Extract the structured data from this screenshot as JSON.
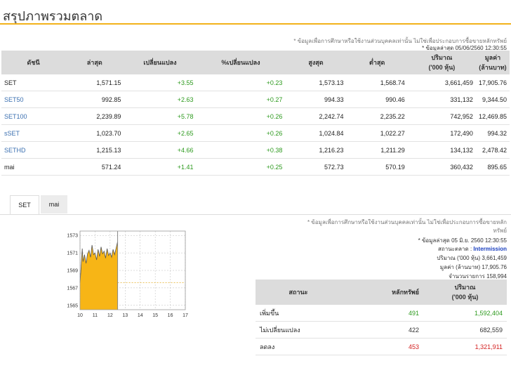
{
  "page": {
    "title": "สรุปภาพรวมตลาด"
  },
  "notes": {
    "disclaimer": "* ข้อมูลเพื่อการศึกษาหรือใช้งานส่วนบุคคลเท่านั้น ไม่ใช่เพื่อประกอบการซื้อขายหลักทรัพย์",
    "updated": "* ข้อมูลล่าสุด 05/06/2560 12:30:55"
  },
  "market_table": {
    "headers": [
      "ดัชนี",
      "ล่าสุด",
      "เปลี่ยนแปลง",
      "%เปลี่ยนแปลง",
      "สูงสุด",
      "ต่ำสุด",
      "ปริมาณ\n('000 หุ้น)",
      "มูลค่า\n(ล้านบาท)"
    ],
    "rows": [
      {
        "index": "SET",
        "last": "1,571.15",
        "change": "+3.55",
        "pct": "+0.23",
        "high": "1,573.13",
        "low": "1,568.74",
        "volume": "3,661,459",
        "value": "17,905.76"
      },
      {
        "index": "SET50",
        "last": "992.85",
        "change": "+2.63",
        "pct": "+0.27",
        "high": "994.33",
        "low": "990.46",
        "volume": "331,132",
        "value": "9,344.50"
      },
      {
        "index": "SET100",
        "last": "2,239.89",
        "change": "+5.78",
        "pct": "+0.26",
        "high": "2,242.74",
        "low": "2,235.22",
        "volume": "742,952",
        "value": "12,469.85"
      },
      {
        "index": "sSET",
        "last": "1,023.70",
        "change": "+2.65",
        "pct": "+0.26",
        "high": "1,024.84",
        "low": "1,022.27",
        "volume": "172,490",
        "value": "994.32"
      },
      {
        "index": "SETHD",
        "last": "1,215.13",
        "change": "+4.66",
        "pct": "+0.38",
        "high": "1,216.23",
        "low": "1,211.29",
        "volume": "134,132",
        "value": "2,478.42"
      },
      {
        "index": "mai",
        "last": "571.24",
        "change": "+1.41",
        "pct": "+0.25",
        "high": "572.73",
        "low": "570.19",
        "volume": "360,432",
        "value": "895.65"
      }
    ]
  },
  "tabs": {
    "set": "SET",
    "mai": "mai"
  },
  "set_panel": {
    "disclaimer_line1": "* ข้อมูลเพื่อการศึกษาหรือใช้งานส่วนบุคคลเท่านั้น ไม่ใช่เพื่อประกอบการซื้อขายหลัก",
    "disclaimer_line2": "ทรัพย์",
    "updated": "* ข้อมูลล่าสุด 05 มิ.ย. 2560 12:30:55",
    "status_label": "สถานะตลาด :",
    "status_value": "Intermission",
    "volume_line": "ปริมาณ ('000 หุ้น) 3,661,459",
    "value_line": "มูลค่า (ล้านบาท) 17,905.76",
    "deals_line": "จำนวนรายการ 158,994"
  },
  "breadth_table": {
    "headers": [
      "สถานะ",
      "หลักทรัพย์",
      "ปริมาณ\n('000 หุ้น)"
    ],
    "rows": [
      {
        "status": "เพิ่มขึ้น",
        "count": "491",
        "volume": "1,592,404",
        "color": "#2d9a1e"
      },
      {
        "status": "ไม่เปลี่ยนแปลง",
        "count": "422",
        "volume": "682,559",
        "color": "#333333"
      },
      {
        "status": "ลดลง",
        "count": "453",
        "volume": "1,321,911",
        "color": "#d42020"
      }
    ]
  },
  "chart_data": {
    "type": "area",
    "title": "",
    "xlabel": "",
    "ylabel": "",
    "x_ticks": [
      "10",
      "11",
      "12",
      "13",
      "14",
      "15",
      "16",
      "17"
    ],
    "y_ticks": [
      "1573",
      "1571",
      "1569",
      "1567",
      "1565"
    ],
    "xlim": [
      10,
      17
    ],
    "ylim": [
      1564.5,
      1573.5
    ],
    "prev_close": 1567.6,
    "x": [
      10.0,
      10.05,
      10.1,
      10.15,
      10.2,
      10.3,
      10.4,
      10.5,
      10.6,
      10.7,
      10.8,
      10.9,
      11.0,
      11.1,
      11.2,
      11.3,
      11.4,
      11.5,
      11.6,
      11.7,
      11.8,
      11.9,
      12.0,
      12.1,
      12.2,
      12.3,
      12.5
    ],
    "values": [
      1567.6,
      1568.8,
      1570.2,
      1571.5,
      1570.0,
      1570.8,
      1569.8,
      1570.9,
      1571.3,
      1570.5,
      1571.9,
      1570.8,
      1571.0,
      1570.2,
      1571.4,
      1570.6,
      1571.7,
      1570.9,
      1571.2,
      1570.4,
      1571.5,
      1570.7,
      1571.0,
      1570.5,
      1571.4,
      1570.8,
      1572.3
    ]
  }
}
